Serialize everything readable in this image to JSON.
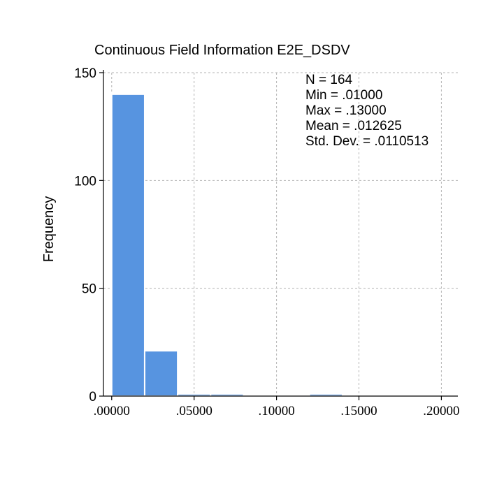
{
  "chart_data": {
    "type": "bar",
    "title": "Continuous Field Information E2E_DSDV",
    "xlabel": "",
    "ylabel": "Frequency",
    "x_ticks": [
      ".00000",
      ".05000",
      ".10000",
      ".15000",
      ".20000"
    ],
    "x_tick_values": [
      0.0,
      0.05,
      0.1,
      0.15,
      0.2
    ],
    "x_range": [
      -0.005,
      0.21
    ],
    "y_ticks": [
      "0",
      "50",
      "100",
      "150"
    ],
    "y_tick_values": [
      0,
      50,
      100,
      150
    ],
    "ylim": [
      0,
      150
    ],
    "bin_width": 0.02,
    "bins": [
      {
        "start": 0.0,
        "end": 0.02,
        "count": 140
      },
      {
        "start": 0.02,
        "end": 0.04,
        "count": 21
      },
      {
        "start": 0.04,
        "end": 0.06,
        "count": 1
      },
      {
        "start": 0.06,
        "end": 0.08,
        "count": 1
      },
      {
        "start": 0.08,
        "end": 0.1,
        "count": 0
      },
      {
        "start": 0.1,
        "end": 0.12,
        "count": 0
      },
      {
        "start": 0.12,
        "end": 0.14,
        "count": 1
      },
      {
        "start": 0.14,
        "end": 0.16,
        "count": 0
      },
      {
        "start": 0.16,
        "end": 0.18,
        "count": 0
      },
      {
        "start": 0.18,
        "end": 0.2,
        "count": 0
      }
    ],
    "stats": {
      "n": "N = 164",
      "min": "Min = .01000",
      "max": "Max = .13000",
      "mean": "Mean = .012625",
      "std": "Std. Dev. = .0110513"
    },
    "grid": true,
    "bar_color": "#5794e0",
    "bar_edge_color": "#ffffff",
    "grid_color": "#b3b3b3"
  }
}
